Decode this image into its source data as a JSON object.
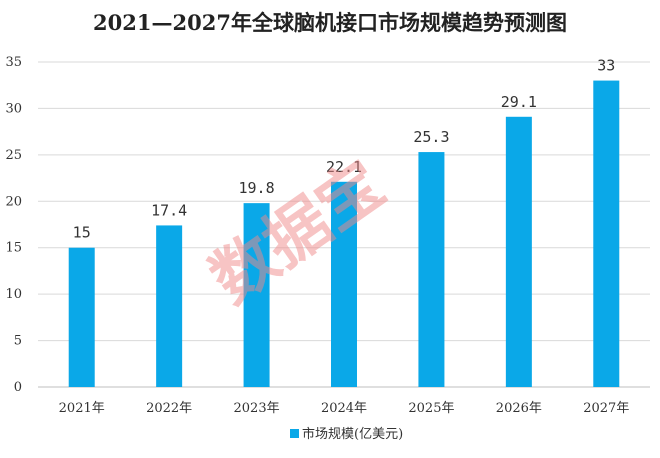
{
  "chart_data": {
    "type": "bar",
    "title": "2021—2027年全球脑机接口市场规模趋势预测图",
    "categories": [
      "2021年",
      "2022年",
      "2023年",
      "2024年",
      "2025年",
      "2026年",
      "2027年"
    ],
    "series": [
      {
        "name": "市场规模(亿美元)",
        "values": [
          15,
          17.4,
          19.8,
          22.1,
          25.3,
          29.1,
          33
        ]
      }
    ],
    "data_labels": [
      "15",
      "17.4",
      "19.8",
      "22.1",
      "25.3",
      "29.1",
      "33"
    ],
    "y_ticks": [
      "0",
      "5",
      "10",
      "15",
      "20",
      "25",
      "30",
      "35"
    ],
    "ylim": [
      0,
      35
    ],
    "xlabel": "",
    "ylabel": "",
    "grid": true,
    "legend_position": "bottom-center"
  },
  "colors": {
    "bar": "#0aa8e8",
    "grid": "#d9d9d9",
    "axis": "#bfbfbf",
    "watermark": "#f08a8a"
  },
  "watermark": {
    "text": "数据宝"
  }
}
